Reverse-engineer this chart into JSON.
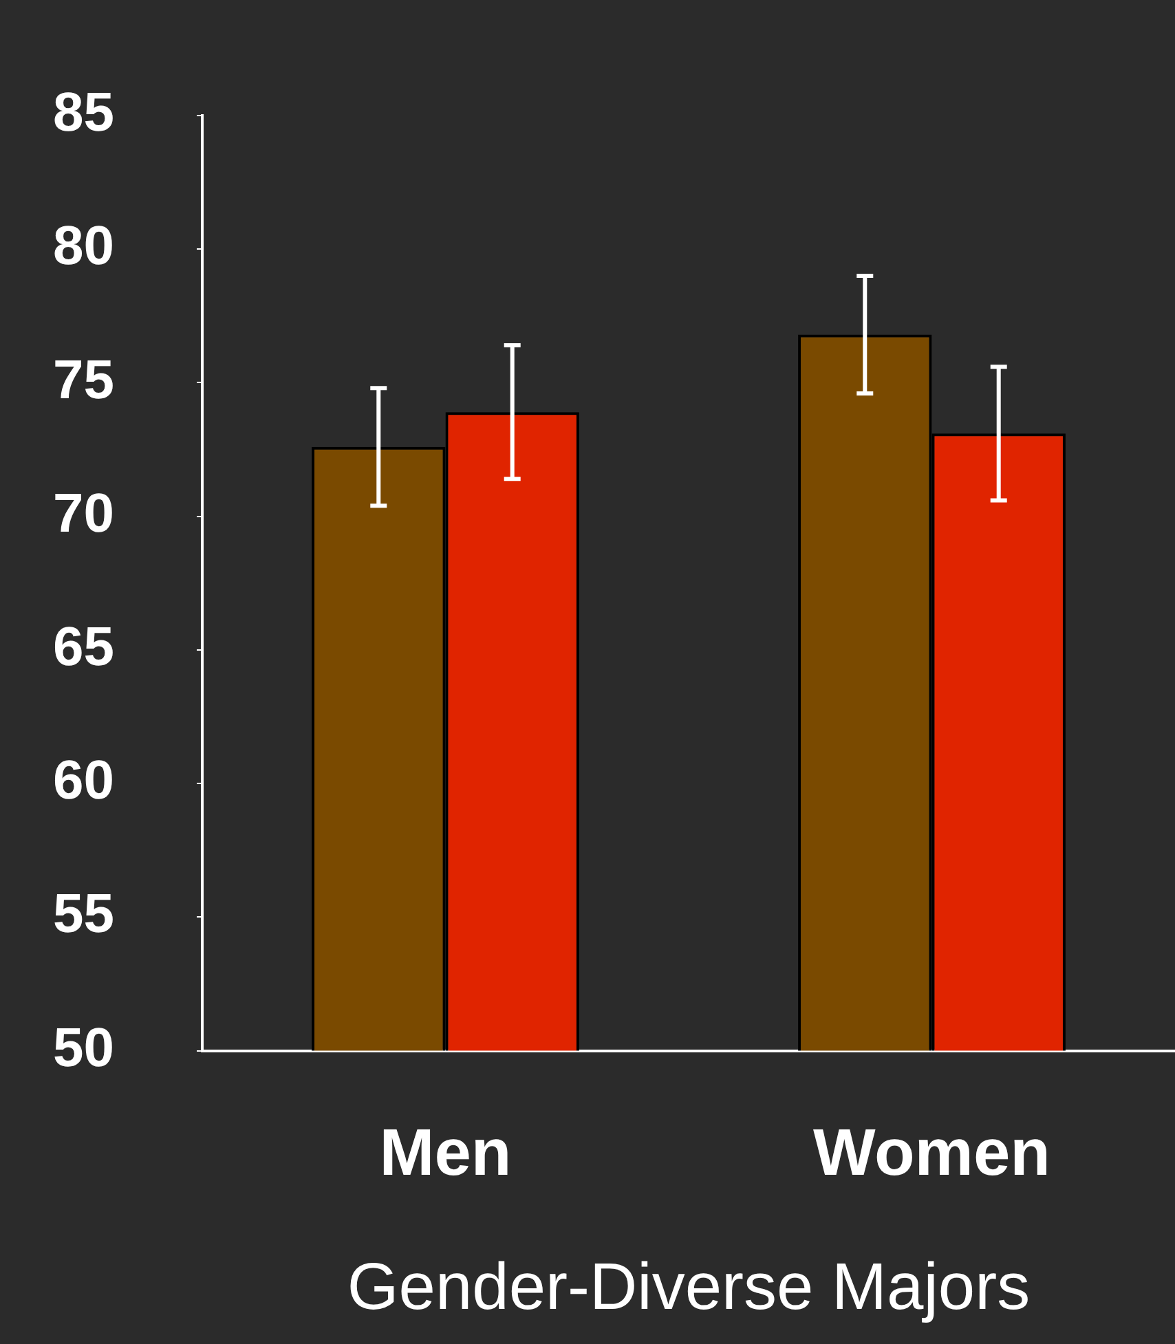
{
  "chart_data": {
    "type": "bar",
    "categories": [
      "Men",
      "Women"
    ],
    "xlabel": "Gender-Diverse Majors",
    "series": [
      {
        "color": "#7a4a00",
        "values": [
          72.6,
          76.8
        ],
        "errors": [
          2.2,
          2.2
        ]
      },
      {
        "color": "#e02400",
        "values": [
          73.9,
          73.1
        ],
        "errors": [
          2.5,
          2.5
        ]
      }
    ],
    "ylim": [
      50,
      85
    ],
    "yticks": [
      50,
      55,
      60,
      65,
      70,
      75,
      80,
      85
    ],
    "grid": false,
    "legend": false
  }
}
